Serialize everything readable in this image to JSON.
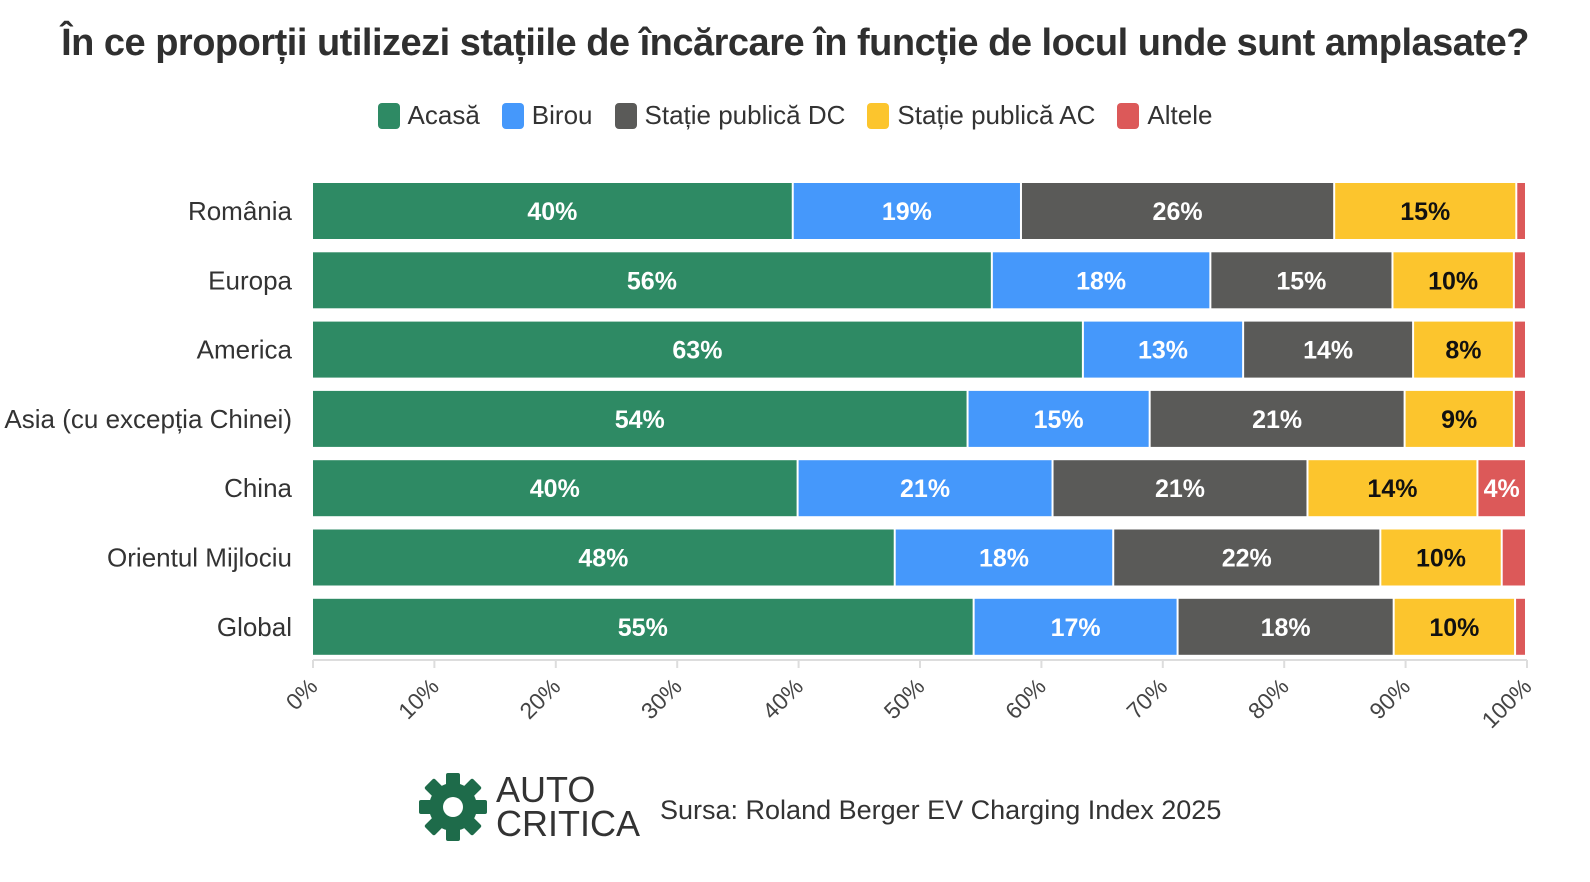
{
  "chart_data": {
    "type": "bar",
    "orientation": "horizontal",
    "stacked": true,
    "title": "În ce proporții utilizezi stațiile de încărcare în funcție de locul unde sunt amplasate?",
    "categories": [
      "România",
      "Europa",
      "America",
      "Asia (cu excepția Chinei)",
      "China",
      "Orientul Mijlociu",
      "Global"
    ],
    "series": [
      {
        "name": "Acasă",
        "color": "#2e8a64",
        "values": [
          39.6,
          56,
          63.5,
          54,
          40,
          48,
          54.5
        ],
        "labels": [
          "40%",
          "56%",
          "63%",
          "54%",
          "40%",
          "48%",
          "55%"
        ]
      },
      {
        "name": "Birou",
        "color": "#4598fb",
        "values": [
          18.8,
          18,
          13.2,
          15,
          21,
          18,
          16.8
        ],
        "labels": [
          "19%",
          "18%",
          "13%",
          "15%",
          "21%",
          "18%",
          "17%"
        ]
      },
      {
        "name": "Stație publică DC",
        "color": "#5a5a58",
        "values": [
          25.8,
          15,
          14,
          21,
          21,
          22,
          17.8
        ],
        "labels": [
          "26%",
          "15%",
          "14%",
          "21%",
          "21%",
          "22%",
          "18%"
        ]
      },
      {
        "name": "Stație publică AC",
        "color": "#fcc52d",
        "values": [
          15,
          10,
          8.3,
          9,
          14,
          10,
          10
        ],
        "labels": [
          "15%",
          "10%",
          "8%",
          "9%",
          "14%",
          "10%",
          "10%"
        ]
      },
      {
        "name": "Altele",
        "color": "#dc5959",
        "values": [
          0.8,
          1,
          1,
          1,
          4,
          2,
          0.9
        ],
        "labels": [
          "",
          "",
          "",
          "",
          "4%",
          "",
          ""
        ]
      }
    ],
    "xlim": [
      0,
      100
    ],
    "x_ticks": [
      "0%",
      "10%",
      "20%",
      "30%",
      "40%",
      "50%",
      "60%",
      "70%",
      "80%",
      "90%",
      "100%"
    ],
    "legend_position": "top",
    "grid": false
  },
  "logo": {
    "line1": "AUTO",
    "line2": "CRITICA",
    "color": "#1e6b4a"
  },
  "source": "Sursa: Roland Berger EV Charging Index 2025"
}
